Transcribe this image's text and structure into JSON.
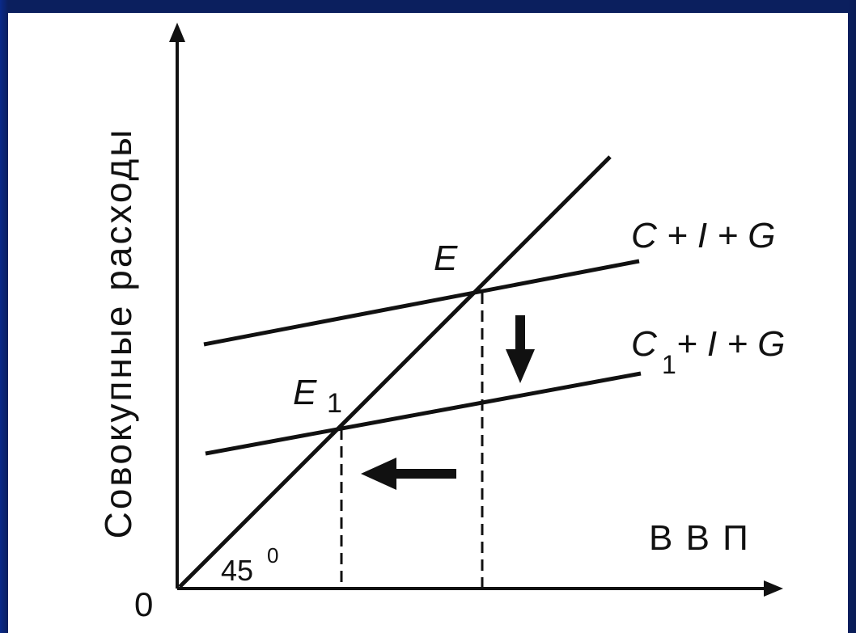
{
  "diagram": {
    "y_axis_label": "Совокупные расходы",
    "x_axis_label": "В В П",
    "origin_label": "0",
    "angle_label": "45",
    "angle_degree_mark": "0",
    "line_upper_label": "C + I + G",
    "line_lower_label_c": "C",
    "line_lower_label_sub": "1",
    "line_lower_label_rest": "+ I + G",
    "point_e_label": "E",
    "point_e1_label": "E",
    "point_e1_sub": "1"
  },
  "colors": {
    "background": "#0b1f5e",
    "panel": "#ffffff",
    "ink": "#111111"
  }
}
